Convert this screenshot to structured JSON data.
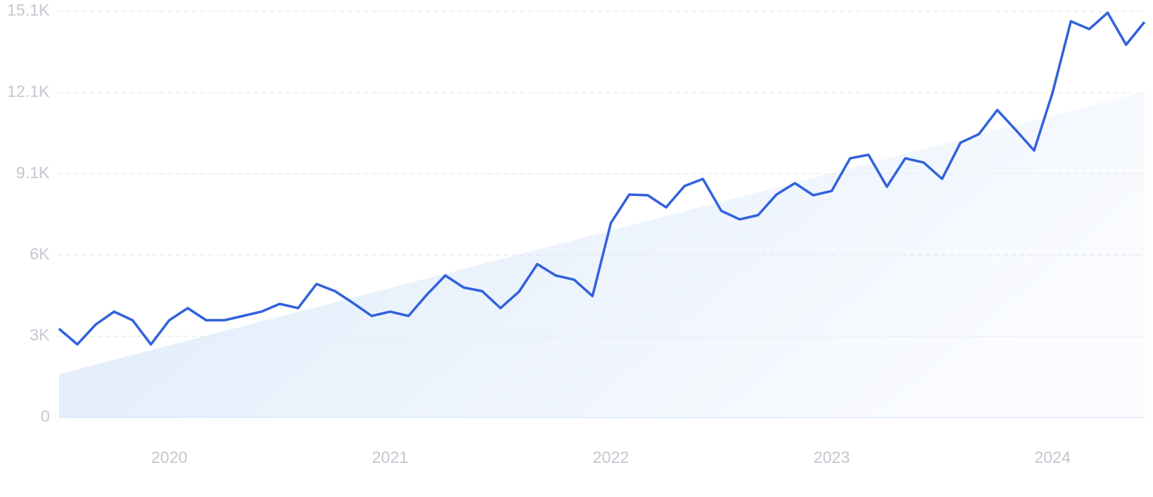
{
  "chart_data": {
    "type": "line",
    "categories": [
      null,
      null,
      null,
      null,
      null,
      null,
      "2020",
      null,
      null,
      null,
      null,
      null,
      null,
      null,
      null,
      null,
      null,
      null,
      "2021",
      null,
      null,
      null,
      null,
      null,
      null,
      null,
      null,
      null,
      null,
      null,
      "2022",
      null,
      null,
      null,
      null,
      null,
      null,
      null,
      null,
      null,
      null,
      null,
      "2023",
      null,
      null,
      null,
      null,
      null,
      null,
      null,
      null,
      null,
      null,
      null,
      "2024",
      null,
      null,
      null,
      null,
      null
    ],
    "values": [
      3300,
      2719,
      3458,
      3934,
      3617,
      2719,
      3617,
      4066,
      3617,
      3617,
      3775,
      3934,
      4224,
      4066,
      4963,
      4699,
      4250,
      3775,
      3934,
      3775,
      4567,
      5280,
      4831,
      4699,
      4066,
      4673,
      5702,
      5280,
      5122,
      4514,
      7234,
      8290,
      8263,
      7814,
      8606,
      8870,
      7682,
      7366,
      7524,
      8290,
      8712,
      8263,
      8422,
      9636,
      9768,
      8580,
      9636,
      9478,
      8870,
      10217,
      10534,
      11431,
      10692,
      9926,
      12065,
      14731,
      14441,
      15048,
      13860,
      14705
    ],
    "trend_values": [
      1610,
      1788,
      1966,
      2144,
      2322,
      2501,
      2679,
      2857,
      3035,
      3213,
      3391,
      3569,
      3747,
      3925,
      4103,
      4282,
      4460,
      4638,
      4816,
      4994,
      5172,
      5350,
      5528,
      5706,
      5884,
      6063,
      6241,
      6419,
      6597,
      6775,
      6953,
      7131,
      7309,
      7487,
      7665,
      7844,
      8022,
      8200,
      8378,
      8556,
      8734,
      8912,
      9090,
      9268,
      9446,
      9625,
      9803,
      9981,
      10159,
      10337,
      10515,
      10693,
      10871,
      11049,
      11227,
      11406,
      11584,
      11762,
      11940,
      12118
    ],
    "color": "#3162dc",
    "ylim": [
      0,
      15100
    ],
    "yticks": [
      0,
      {
        "value": 3020,
        "label": "3K"
      },
      {
        "value": 6040,
        "label": "6K"
      },
      {
        "value": 9060,
        "label": "9.1K"
      },
      {
        "value": 12080,
        "label": "12.1K"
      },
      {
        "value": 15100,
        "label": "15.1K"
      }
    ],
    "grid": true
  }
}
